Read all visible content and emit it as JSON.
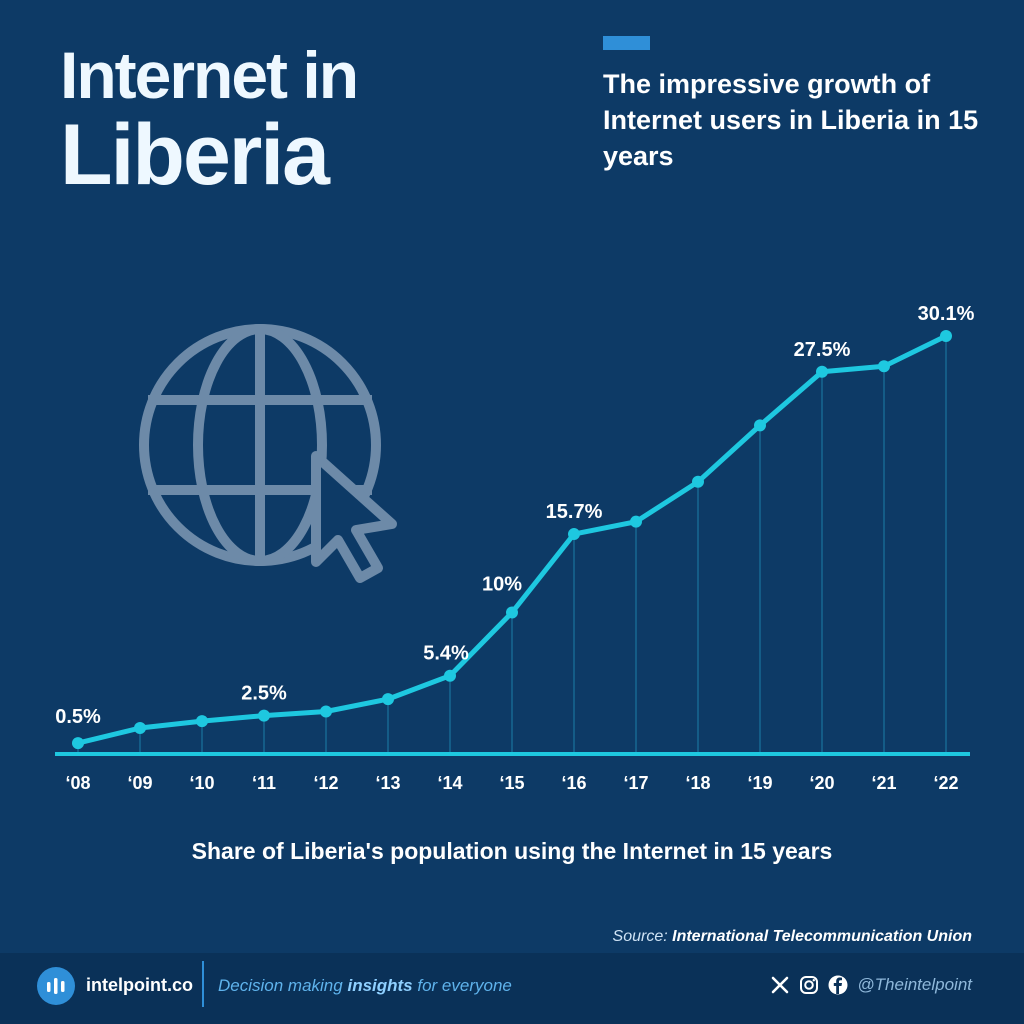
{
  "header": {
    "title_line1": "Internet in",
    "title_line2": "Liberia",
    "subtitle": "The impressive growth of Internet users in Liberia in 15 years"
  },
  "colors": {
    "background": "#0d3a66",
    "line": "#1ec8e0",
    "accent": "#2f8fd8",
    "icon": "#6d8aa8"
  },
  "icons": [
    "globe-cursor-icon",
    "intelpoint-logo-icon",
    "x-icon",
    "instagram-icon",
    "facebook-icon"
  ],
  "chart_data": {
    "type": "line",
    "title": "Share of Liberia's population using the Internet in 15 years",
    "categories": [
      "‘08",
      "‘09",
      "‘10",
      "‘11",
      "‘12",
      "‘13",
      "‘14",
      "‘15",
      "‘16",
      "‘17",
      "‘18",
      "‘19",
      "‘20",
      "‘21",
      "‘22"
    ],
    "series": [
      {
        "values": [
          0.5,
          1.6,
          2.1,
          2.5,
          2.8,
          3.7,
          5.4,
          10,
          15.7,
          16.6,
          19.5,
          23.6,
          27.5,
          27.9,
          30.1
        ]
      }
    ],
    "data_labels": [
      {
        "index": 0,
        "text": "0.5%"
      },
      {
        "index": 3,
        "text": "2.5%"
      },
      {
        "index": 6,
        "text": "5.4%"
      },
      {
        "index": 7,
        "text": "10%"
      },
      {
        "index": 8,
        "text": "15.7%"
      },
      {
        "index": 12,
        "text": "27.5%"
      },
      {
        "index": 14,
        "text": "30.1%"
      }
    ],
    "ylim": [
      0,
      30.1
    ],
    "grid": false,
    "legend": "none"
  },
  "caption": "Share of Liberia's population using the Internet in 15 years",
  "source": {
    "label": "Source:",
    "name": "International Telecommunication Union"
  },
  "footer": {
    "brand": "intelpoint.co",
    "tagline_before": "Decision making",
    "tagline_bold": "insights",
    "tagline_after": "for everyone",
    "handle": "@Theintelpoint"
  }
}
